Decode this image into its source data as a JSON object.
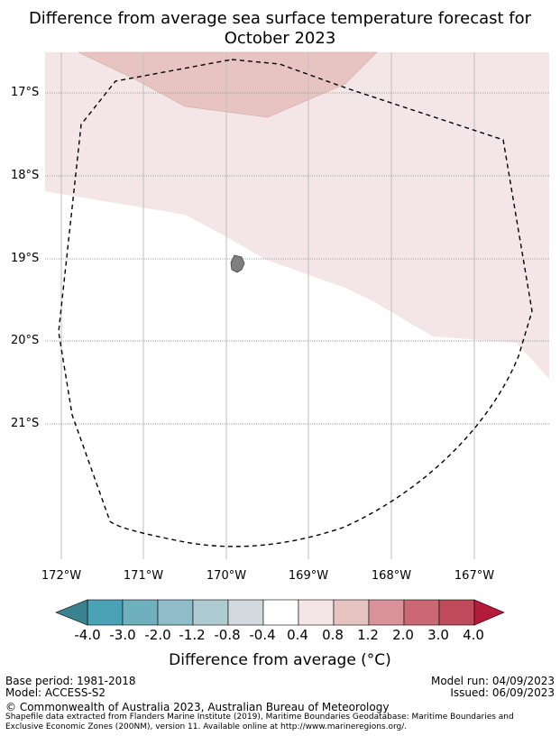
{
  "title": {
    "line1": "Difference from average sea surface temperature forecast for",
    "line2": "October 2023"
  },
  "map": {
    "lat_labels": [
      "17°S",
      "18°S",
      "19°S",
      "20°S",
      "21°S"
    ],
    "lon_labels": [
      "172°W",
      "171°W",
      "170°W",
      "169°W",
      "168°W",
      "167°W"
    ],
    "colors": {
      "anomaly_0_4_0_8": "#f4e6e6",
      "anomaly_0_8_1_2": "#e7c4c2",
      "island": "#808080",
      "eez_line": "#000000"
    }
  },
  "colorbar": {
    "ticks": [
      "-4.0",
      "-3.0",
      "-2.0",
      "-1.2",
      "-0.8",
      "-0.4",
      "0.4",
      "0.8",
      "1.2",
      "2.0",
      "3.0",
      "4.0"
    ],
    "colors": [
      "#4aa3b5",
      "#6fb0bf",
      "#8fbcc8",
      "#aecbd1",
      "#d2d9dc",
      "#ffffff",
      "#f4e6e6",
      "#e7c4c2",
      "#d9929a",
      "#cc6874",
      "#c04a59"
    ],
    "low_extend_color": "#3b8290",
    "high_extend_color": "#b31b3b",
    "label": "Difference from average (°C)"
  },
  "footer": {
    "base_period": "Base period: 1981-2018",
    "model": "Model: ACCESS-S2",
    "model_run": "Model run: 04/09/2023",
    "issued": "Issued: 06/09/2023",
    "copyright": "© Commonwealth of Australia 2023, Australian Bureau of Meteorology",
    "shapefile_line1": "Shapefile data extracted from Flanders Marine Institute (2019), Maritime Boundaries Geodatabase: Maritime Boundaries and",
    "shapefile_line2": "Exclusive Economic Zones (200NM), version 11. Available online at http://www.marineregions.org/."
  }
}
